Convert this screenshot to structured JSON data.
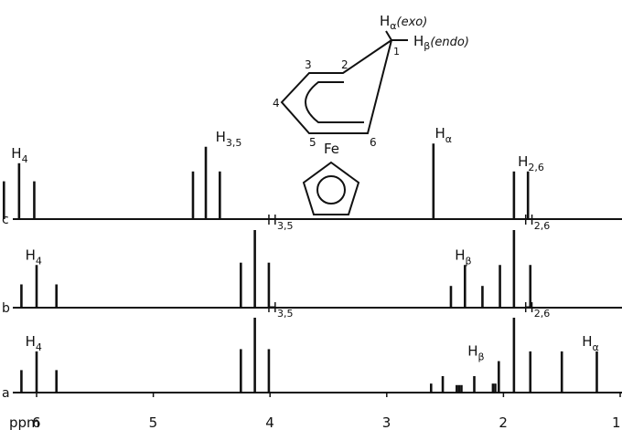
{
  "chart_data": {
    "type": "stick-spectrum",
    "x_unit_label": "ppm",
    "x_ticks": [
      6,
      5,
      4,
      3,
      2,
      1
    ],
    "xlim": [
      6.4,
      1.0
    ],
    "traces": [
      {
        "id": "c",
        "sticks": [
          {
            "ppm": 6.28,
            "h": 0.46
          },
          {
            "ppm": 6.15,
            "h": 0.68
          },
          {
            "ppm": 6.02,
            "h": 0.46
          },
          {
            "ppm": 4.66,
            "h": 0.58
          },
          {
            "ppm": 4.55,
            "h": 0.88
          },
          {
            "ppm": 4.43,
            "h": 0.58
          },
          {
            "ppm": 2.6,
            "h": 0.92
          },
          {
            "ppm": 1.91,
            "h": 0.58
          },
          {
            "ppm": 1.79,
            "h": 0.58
          }
        ],
        "labels": [
          {
            "base": "H",
            "sub": "4",
            "at_ppm": 6.17
          },
          {
            "base": "H",
            "sub": "3,5",
            "at_ppm": 4.42
          },
          {
            "base": "H",
            "sub": "α",
            "at_ppm": 2.54
          },
          {
            "base": "H",
            "sub": "2,6",
            "at_ppm": 1.83
          }
        ]
      },
      {
        "id": "b",
        "sticks": [
          {
            "ppm": 6.13,
            "h": 0.3
          },
          {
            "ppm": 6.0,
            "h": 0.55
          },
          {
            "ppm": 5.83,
            "h": 0.3
          },
          {
            "ppm": 4.25,
            "h": 0.58
          },
          {
            "ppm": 4.13,
            "h": 1.0
          },
          {
            "ppm": 4.01,
            "h": 0.58
          },
          {
            "ppm": 2.45,
            "h": 0.28
          },
          {
            "ppm": 2.33,
            "h": 0.55
          },
          {
            "ppm": 2.18,
            "h": 0.28
          },
          {
            "ppm": 2.03,
            "h": 0.55
          },
          {
            "ppm": 1.91,
            "h": 1.0
          },
          {
            "ppm": 1.77,
            "h": 0.55
          }
        ],
        "labels": [
          {
            "base": "H",
            "sub": "4",
            "at_ppm": 6.05
          },
          {
            "base": "H",
            "sub": "3,5",
            "at_ppm": 3.98
          },
          {
            "base": "H",
            "sub": "β",
            "at_ppm": 2.37
          },
          {
            "base": "H",
            "sub": "2,6",
            "at_ppm": 1.78
          }
        ]
      },
      {
        "id": "a",
        "sticks": [
          {
            "ppm": 6.13,
            "h": 0.3
          },
          {
            "ppm": 6.0,
            "h": 0.55
          },
          {
            "ppm": 5.83,
            "h": 0.3
          },
          {
            "ppm": 4.25,
            "h": 0.58
          },
          {
            "ppm": 4.13,
            "h": 1.0
          },
          {
            "ppm": 4.01,
            "h": 0.58
          },
          {
            "ppm": 2.62,
            "h": 0.12
          },
          {
            "ppm": 2.52,
            "h": 0.22
          },
          {
            "ppm": 2.4,
            "h": 0.1
          },
          {
            "ppm": 2.38,
            "h": 0.1
          },
          {
            "ppm": 2.36,
            "h": 0.1
          },
          {
            "ppm": 2.25,
            "h": 0.22
          },
          {
            "ppm": 2.09,
            "h": 0.12
          },
          {
            "ppm": 2.07,
            "h": 0.12
          },
          {
            "ppm": 2.04,
            "h": 0.42
          },
          {
            "ppm": 1.91,
            "h": 1.0
          },
          {
            "ppm": 1.77,
            "h": 0.55
          },
          {
            "ppm": 1.5,
            "h": 0.55
          },
          {
            "ppm": 1.2,
            "h": 0.55
          }
        ],
        "labels": [
          {
            "base": "H",
            "sub": "4",
            "at_ppm": 6.05
          },
          {
            "base": "H",
            "sub": "3,5",
            "at_ppm": 3.98
          },
          {
            "base": "H",
            "sub": "β",
            "at_ppm": 2.26
          },
          {
            "base": "H",
            "sub": "2,6",
            "at_ppm": 1.78
          },
          {
            "base": "H",
            "sub": "α",
            "at_ppm": 1.28
          }
        ]
      }
    ]
  },
  "structure": {
    "h_exo_base": "H",
    "h_exo_sub": "α",
    "h_exo_tag": "(exo)",
    "h_endo_base": "H",
    "h_endo_sub": "β",
    "h_endo_tag": "(endo)",
    "atoms": [
      "1",
      "2",
      "3",
      "4",
      "5",
      "6"
    ],
    "metal": "Fe"
  }
}
